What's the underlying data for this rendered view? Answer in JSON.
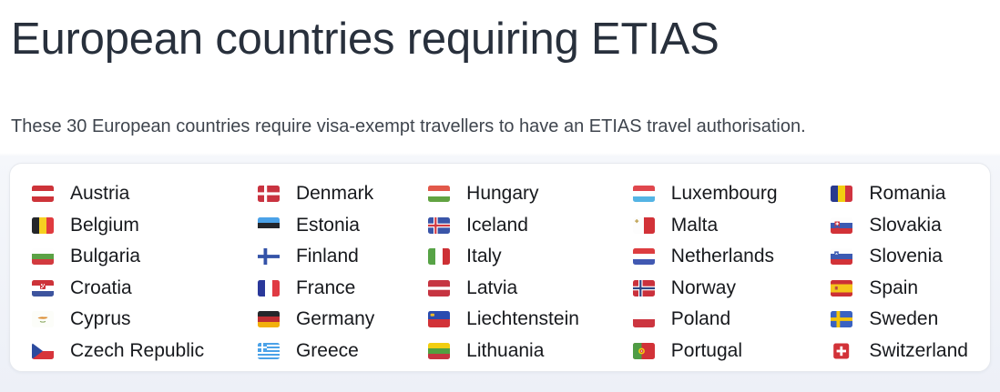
{
  "page": {
    "title": "European countries requiring ETIAS",
    "subtitle": "These 30 European countries require visa-exempt travellers to have an ETIAS travel authorisation."
  },
  "colors": {
    "title_text": "#28303c",
    "subtitle_text": "#3f454e",
    "country_text": "#17191d",
    "card_background": "#ffffff",
    "card_border": "#e6e9ee",
    "page_background_top": "#ffffff",
    "page_background_bottom": "#edf0f7"
  },
  "countries_panel": {
    "count": 30,
    "columns": [
      [
        "Austria",
        "Belgium",
        "Bulgaria",
        "Croatia",
        "Cyprus",
        "Czech Republic"
      ],
      [
        "Denmark",
        "Estonia",
        "Finland",
        "France",
        "Germany",
        "Greece"
      ],
      [
        "Hungary",
        "Iceland",
        "Italy",
        "Latvia",
        "Liechtenstein",
        "Lithuania"
      ],
      [
        "Luxembourg",
        "Malta",
        "Netherlands",
        "Norway",
        "Poland",
        "Portugal"
      ],
      [
        "Romania",
        "Slovakia",
        "Slovenia",
        "Spain",
        "Sweden",
        "Switzerland"
      ]
    ]
  }
}
